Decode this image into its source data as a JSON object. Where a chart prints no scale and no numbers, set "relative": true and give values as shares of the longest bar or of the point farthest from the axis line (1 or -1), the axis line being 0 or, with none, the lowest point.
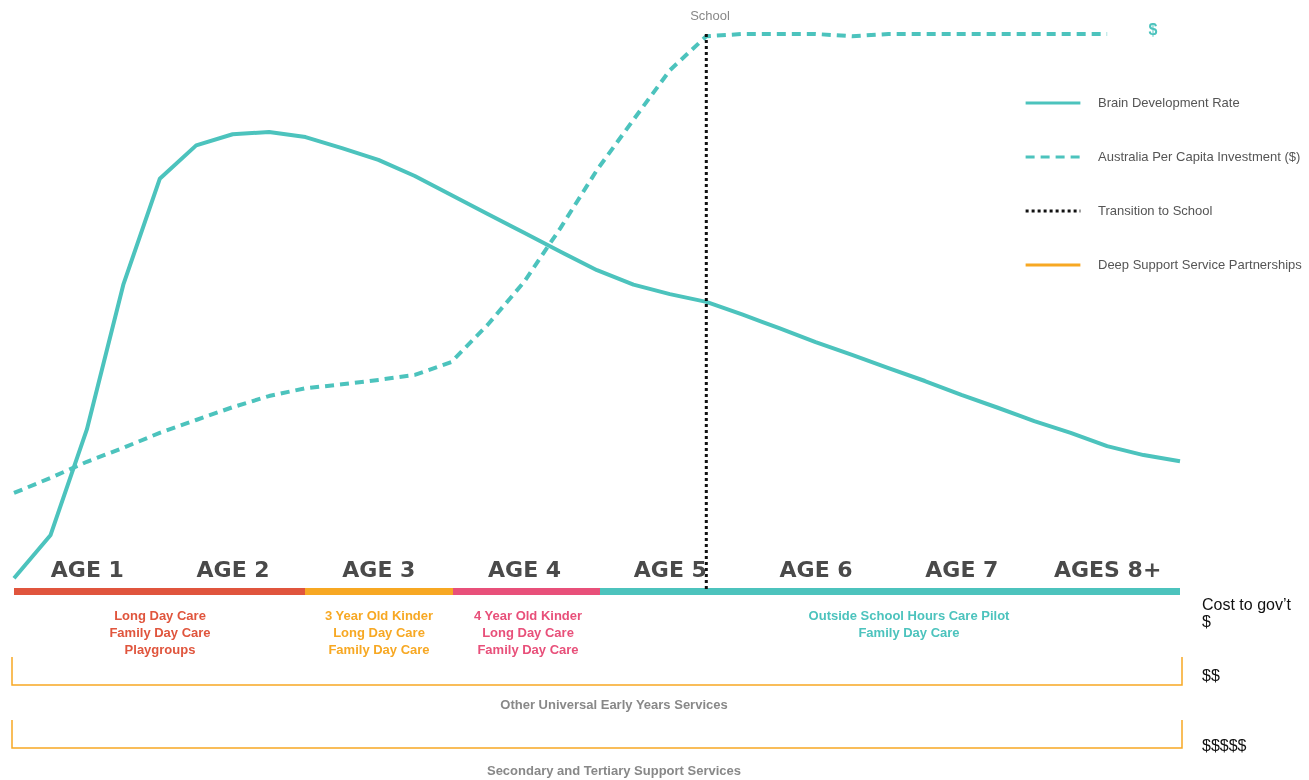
{
  "chart_data": {
    "type": "line",
    "relative": true,
    "categories": [
      null,
      null,
      "AGE 1",
      null,
      null,
      null,
      "AGE 2",
      null,
      null,
      null,
      "AGE 3",
      null,
      null,
      null,
      "AGE 4",
      null,
      null,
      null,
      "AGE 5",
      null,
      null,
      null,
      "AGE 6",
      null,
      null,
      null,
      "AGE 7",
      null,
      null,
      null,
      "AGES 8+",
      null,
      null
    ],
    "series": [
      {
        "name": "Brain Development Rate",
        "color": "#4cc3bd",
        "line_style": "solid",
        "values": [
          0.023,
          0.1,
          0.29,
          0.55,
          0.74,
          0.8,
          0.82,
          0.824,
          0.815,
          0.795,
          0.774,
          0.745,
          0.711,
          0.677,
          0.643,
          0.609,
          0.576,
          0.55,
          0.533,
          0.519,
          0.496,
          0.472,
          0.447,
          0.424,
          0.4,
          0.377,
          0.352,
          0.329,
          0.305,
          0.284,
          0.26,
          0.244,
          0.233
        ]
      },
      {
        "name": "Australia Per Capita Investment ($)",
        "color": "#4cc3bd",
        "line_style": "dashed",
        "values": [
          0.176,
          0.203,
          0.232,
          0.257,
          0.284,
          0.307,
          0.33,
          0.35,
          0.364,
          0.371,
          0.379,
          0.388,
          0.411,
          0.478,
          0.555,
          0.652,
          0.756,
          0.846,
          0.935,
          0.996,
          1,
          1,
          1,
          0.996,
          1,
          1,
          1,
          1,
          1,
          1,
          1,
          null,
          null
        ]
      },
      {
        "name": "Transition to School",
        "color": "#111111",
        "line_style": "dotted",
        "values": [
          null,
          null,
          null,
          null,
          null,
          null,
          null,
          null,
          null,
          null,
          null,
          null,
          null,
          null,
          null,
          null,
          null,
          null,
          null,
          null,
          null,
          null,
          null,
          null,
          null,
          null,
          null,
          null,
          null,
          null,
          null,
          null,
          null
        ]
      },
      {
        "name": "Deep Support Service Partnerships",
        "color": "#f7a823",
        "line_style": "solid",
        "values": [
          null,
          null,
          null,
          null,
          null,
          null,
          null,
          null,
          null,
          null,
          null,
          null,
          null,
          null,
          null,
          null,
          null,
          null,
          null,
          null,
          null,
          null,
          null,
          null,
          null,
          null,
          null,
          null,
          null,
          null,
          null,
          null,
          null
        ]
      }
    ],
    "annotations": [
      "School",
      "$",
      "Long Day Care\nFamily Day Care\nPlaygroups",
      "3 Year Old Kinder\nLong Day Care\nFamily Day Care",
      "4 Year Old Kinder\nLong Day Care\nFamily Day Care",
      "Outside School Hours Care Pilot\nFamily Day Care",
      "Cost to gov’t\n$",
      "$$",
      "Other Universal Early Years Services",
      "$$$$$",
      "Secondary and Tertiary Support Services"
    ],
    "legend": "top right"
  }
}
